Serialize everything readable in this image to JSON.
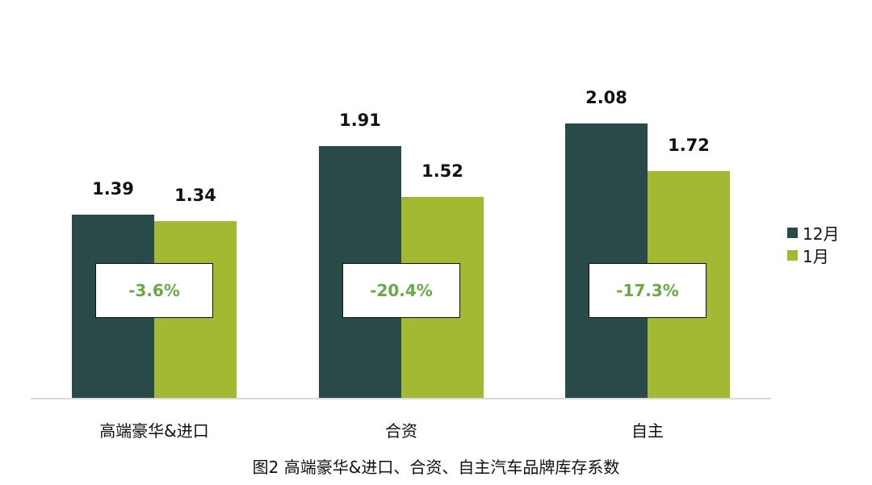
{
  "chart_data": {
    "type": "bar",
    "title": "图2 高端豪华&进口、合资、自主汽车品牌库存系数",
    "categories": [
      "高端豪华&进口",
      "合资",
      "自主"
    ],
    "series": [
      {
        "name": "12月",
        "color": "#2a4a4a",
        "values": [
          1.39,
          1.91,
          2.08
        ]
      },
      {
        "name": "1月",
        "color": "#a3b934",
        "values": [
          1.34,
          1.52,
          1.72
        ]
      }
    ],
    "value_labels": {
      "12月": [
        "1.39",
        "1.91",
        "2.08"
      ],
      "1月": [
        "1.34",
        "1.52",
        "1.72"
      ]
    },
    "annotations": [
      "-3.6%",
      "-20.4%",
      "-17.3%"
    ],
    "annotation_color": "#6aaa45",
    "xlabel": "",
    "ylabel": "",
    "ylim": [
      0,
      2.4
    ],
    "grid": false,
    "legend_position": "right"
  },
  "legend": {
    "items": [
      {
        "label": "12月",
        "color": "#2a4a4a"
      },
      {
        "label": "1月",
        "color": "#a3b934"
      }
    ]
  },
  "caption": "图2 高端豪华&进口、合资、自主汽车品牌库存系数"
}
